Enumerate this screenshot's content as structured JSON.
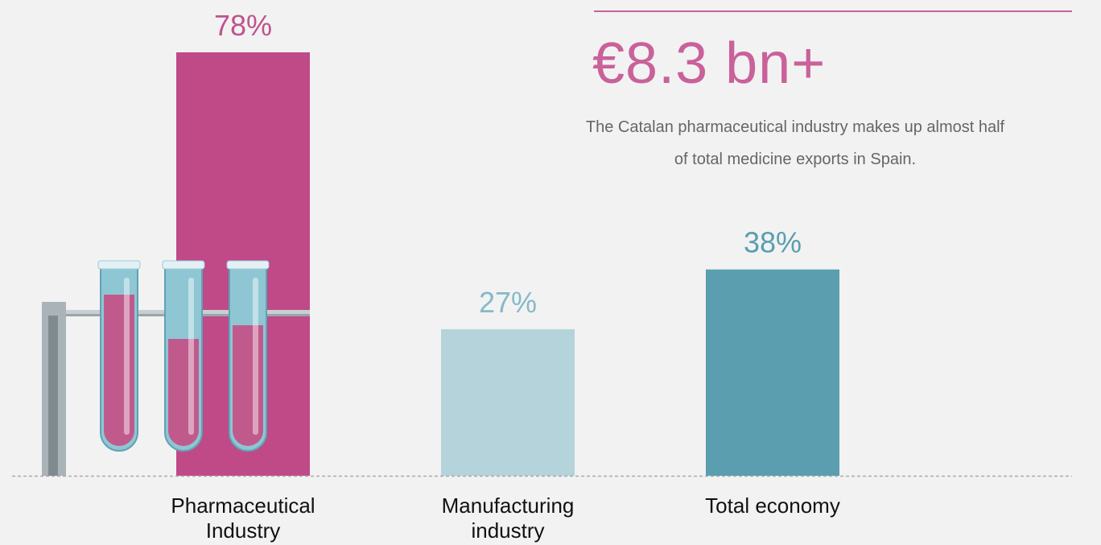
{
  "chart_data": {
    "type": "bar",
    "categories": [
      "Pharmaceutical Industry",
      "Manufacturing industry",
      "Total economy"
    ],
    "values": [
      78,
      27,
      38
    ],
    "value_labels": [
      "78%",
      "27%",
      "38%"
    ],
    "colors": [
      "#bf4a87",
      "#b5d3db",
      "#5a9eaf"
    ],
    "label_colors": [
      "#c0538d",
      "#86b9c8",
      "#5a9eaf"
    ]
  },
  "annotation": {
    "headline": "€8.3 bn+",
    "text": "The Catalan pharmaceutical industry makes up almost half of total medicine exports in Spain."
  }
}
